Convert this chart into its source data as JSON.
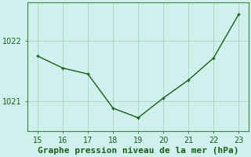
{
  "x": [
    15,
    16,
    17,
    18,
    19,
    20,
    21,
    22,
    23
  ],
  "y": [
    1021.75,
    1021.55,
    1021.45,
    1020.88,
    1020.72,
    1021.05,
    1021.35,
    1021.72,
    1022.45
  ],
  "line_color": "#1a5e1a",
  "marker_color": "#1a5e1a",
  "bg_color": "#cff0ec",
  "grid_color": "#a8d8cc",
  "xlabel": "Graphe pression niveau de la mer (hPa)",
  "xlabel_color": "#1a5e1a",
  "tick_color": "#1a5e1a",
  "ylim": [
    1020.5,
    1022.65
  ],
  "xlim": [
    14.6,
    23.4
  ],
  "yticks": [
    1021,
    1022
  ],
  "xticks": [
    15,
    16,
    17,
    18,
    19,
    20,
    21,
    22,
    23
  ],
  "spine_color": "#3a8a3a",
  "tick_fontsize": 7,
  "xlabel_fontsize": 8,
  "linewidth": 1.0,
  "markersize": 3
}
